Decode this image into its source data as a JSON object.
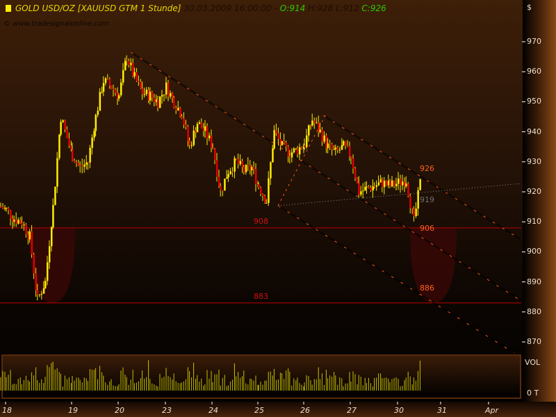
{
  "header": {
    "symbol": "GOLD USD/OZ [XAUUSD GTM  1 Stunde]",
    "datetime": "30.03.2009 16:00:00 -",
    "open": "O:914",
    "high": "H:928",
    "low": "L:912",
    "close": "C:926",
    "watermark": "© www.tradesignalonline.com"
  },
  "colors": {
    "up": "#ffee00",
    "down": "#e00000",
    "level_line": "#c00000",
    "channel": "#ff5a1e",
    "volume": "#e8e000"
  },
  "chart_data": {
    "type": "candlestick",
    "interval": "1 Stunde",
    "currency_unit": "$",
    "ylim": [
      865,
      975
    ],
    "yticks": [
      "970",
      "960",
      "950",
      "940",
      "930",
      "920",
      "910",
      "900",
      "890",
      "880",
      "870"
    ],
    "xticks": [
      "18",
      "19",
      "20",
      "23",
      "24",
      "25",
      "26",
      "27",
      "30",
      "31",
      "Apr"
    ],
    "series": [
      {
        "day": "17",
        "closes": [
          915
        ]
      },
      {
        "day": "18",
        "closes": [
          914,
          911,
          910,
          905,
          884,
          890,
          915,
          945
        ]
      },
      {
        "day": "19",
        "closes": [
          932,
          928,
          930,
          945,
          957,
          955
        ]
      },
      {
        "day": "20",
        "closes": [
          952,
          965,
          958,
          953,
          952,
          950
        ]
      },
      {
        "day": "23",
        "closes": [
          955,
          950,
          946,
          935,
          943,
          940
        ]
      },
      {
        "day": "24",
        "closes": [
          935,
          920,
          927,
          930,
          927,
          928
        ]
      },
      {
        "day": "25",
        "closes": [
          922,
          917,
          940,
          935,
          933,
          934
        ]
      },
      {
        "day": "26",
        "closes": [
          936,
          944,
          940,
          935,
          933,
          935
        ]
      },
      {
        "day": "27",
        "closes": [
          932,
          920,
          921,
          922,
          923,
          922
        ]
      },
      {
        "day": "30",
        "closes": [
          923,
          924,
          910,
          926
        ]
      }
    ],
    "levels": [
      {
        "value": 908,
        "label": "908"
      },
      {
        "value": 883,
        "label": "883"
      }
    ],
    "annotations": [
      "926",
      "919",
      "906",
      "886"
    ],
    "volume_label": "VOL",
    "volume_axis": "0 T"
  }
}
